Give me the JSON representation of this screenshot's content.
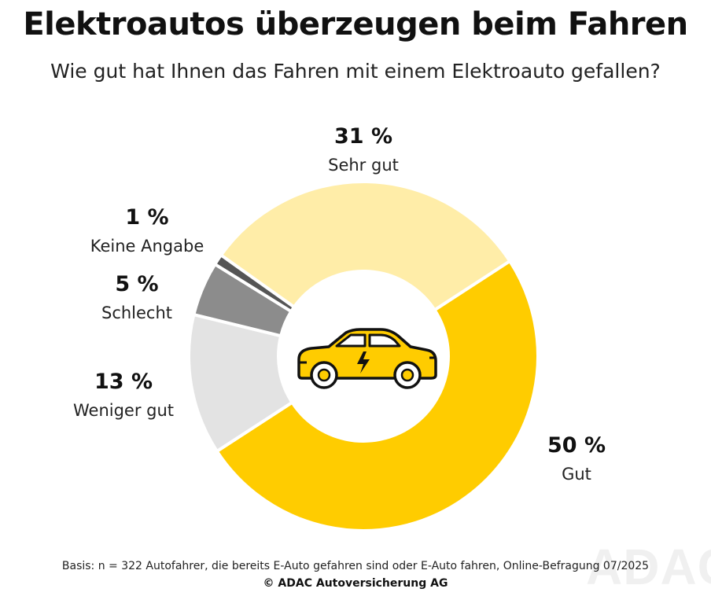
{
  "title": "Elektroautos überzeugen beim Fahren",
  "subtitle": "Wie gut hat Ihnen das Fahren mit einem Elektroauto gefallen?",
  "footnote": "Basis: n = 322 Autofahrer, die bereits E-Auto gefahren sind oder E-Auto fahren, Online-Befragung 07/2025",
  "credit": "© ADAC Autoversicherung AG",
  "watermark": "ADAC",
  "chart_data": {
    "type": "pie",
    "style": "donut",
    "title": "Elektroautos überzeugen beim Fahren",
    "subtitle": "Wie gut hat Ihnen das Fahren mit einem Elektroauto gefallen?",
    "unit": "%",
    "center_icon": "electric-car-icon",
    "slices": [
      {
        "label": "Gut",
        "value": 50,
        "display": "50 %",
        "color": "#FFCC00"
      },
      {
        "label": "Weniger gut",
        "value": 13,
        "display": "13 %",
        "color": "#E3E3E3"
      },
      {
        "label": "Schlecht",
        "value": 5,
        "display": "5 %",
        "color": "#8C8C8C"
      },
      {
        "label": "Keine Angabe",
        "value": 1,
        "display": "1 %",
        "color": "#555555"
      },
      {
        "label": "Sehr gut",
        "value": 31,
        "display": "31 %",
        "color": "#FFEDA8"
      }
    ]
  }
}
